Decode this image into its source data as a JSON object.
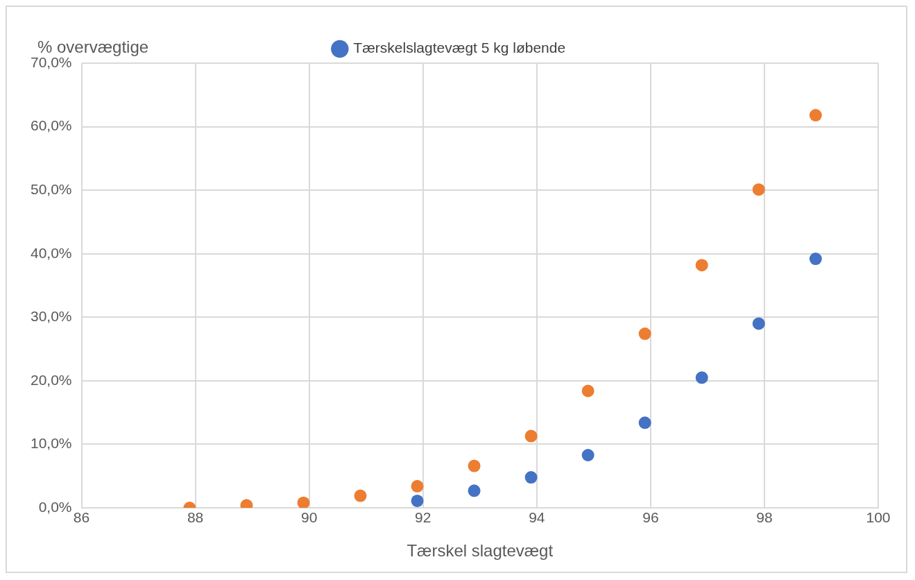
{
  "chart_data": {
    "type": "scatter",
    "xlabel": "Tærskel slagtevægt",
    "ylabel": "% overvægtige",
    "series": [
      {
        "name": "Tærskelslagtevægt 5 kg løbende",
        "color": "#4472c4",
        "x": [
          91.9,
          92.9,
          93.9,
          94.9,
          95.9,
          96.9,
          97.9,
          98.9
        ],
        "values": [
          1.1,
          2.7,
          4.8,
          8.3,
          13.4,
          20.5,
          29.0,
          39.2
        ]
      },
      {
        "color": "#ed7d31",
        "x": [
          87.9,
          88.9,
          89.9,
          90.9,
          91.9,
          92.9,
          93.9,
          94.9,
          95.9,
          96.9,
          97.9,
          98.9
        ],
        "values": [
          0.0,
          0.4,
          0.8,
          1.9,
          3.4,
          6.6,
          11.3,
          18.4,
          27.4,
          38.2,
          50.1,
          61.8
        ]
      }
    ],
    "xlim": [
      86,
      100
    ],
    "xticks": [
      86,
      88,
      90,
      92,
      94,
      96,
      98,
      100
    ],
    "ylim": [
      0,
      70
    ],
    "yticks": [
      {
        "value": 0,
        "label": "0,0%"
      },
      {
        "value": 10,
        "label": "10,0%"
      },
      {
        "value": 20,
        "label": "20,0%"
      },
      {
        "value": 30,
        "label": "30,0%"
      },
      {
        "value": 40,
        "label": "40,0%"
      },
      {
        "value": 50,
        "label": "50,0%"
      },
      {
        "value": 60,
        "label": "60,0%"
      },
      {
        "value": 70,
        "label": "70,0%"
      }
    ],
    "grid": true,
    "legend": "top",
    "marker": "circle"
  }
}
